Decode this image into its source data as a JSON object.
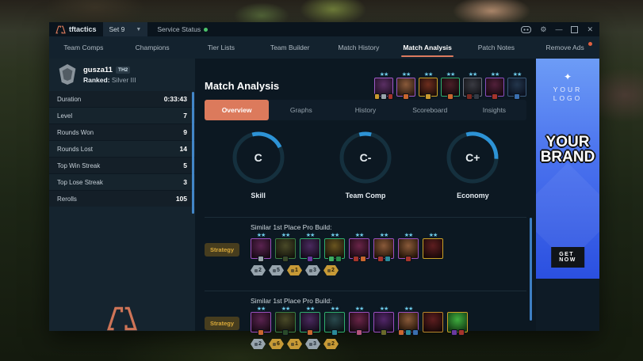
{
  "titlebar": {
    "brand": "tftactics",
    "set_selector": "Set 9",
    "service_status": "Service Status"
  },
  "nav": {
    "tabs": [
      {
        "label": "Team Comps",
        "active": false
      },
      {
        "label": "Champions",
        "active": false
      },
      {
        "label": "Tier Lists",
        "active": false
      },
      {
        "label": "Team Builder",
        "active": false
      },
      {
        "label": "Match History",
        "active": false
      },
      {
        "label": "Match Analysis",
        "active": true
      },
      {
        "label": "Patch Notes",
        "active": false
      },
      {
        "label": "Remove Ads",
        "active": false,
        "badge_dot": true
      }
    ]
  },
  "sidebar": {
    "player": {
      "name": "gusza11",
      "tag": "TH2",
      "ranked_label": "Ranked:",
      "rank": "Silver III"
    },
    "stats": [
      {
        "label": "Duration",
        "value": "0:33:43"
      },
      {
        "label": "Level",
        "value": "7"
      },
      {
        "label": "Rounds Won",
        "value": "9"
      },
      {
        "label": "Rounds Lost",
        "value": "14"
      },
      {
        "label": "Top Win Streak",
        "value": "5"
      },
      {
        "label": "Top Lose Streak",
        "value": "3"
      },
      {
        "label": "Rerolls",
        "value": "105"
      }
    ]
  },
  "main": {
    "title": "Match Analysis",
    "header_champions": [
      {
        "border": "#a05ac8",
        "bg1": "#5a2f63",
        "bg2": "#201024",
        "stars": 2,
        "items": [
          "#c9992f",
          "#9aa4ac",
          "#a5342c"
        ]
      },
      {
        "border": "#9b59c9",
        "bg1": "#8a5a3a",
        "bg2": "#2a1a12",
        "stars": 2,
        "items": [
          "#c9662f"
        ]
      },
      {
        "border": "#c9a227",
        "bg1": "#6e2e1e",
        "bg2": "#1c0d0a",
        "stars": 2,
        "items": [
          "#c9992f"
        ]
      },
      {
        "border": "#2fae6e",
        "bg1": "#4a1f28",
        "bg2": "#14090c",
        "stars": 2,
        "items": [
          "#c9662f"
        ]
      },
      {
        "border": "#6b7280",
        "bg1": "#3a3b42",
        "bg2": "#121318",
        "stars": 2,
        "items": [
          "#7a2a22",
          "#333a44"
        ]
      },
      {
        "border": "#8a4fc0",
        "bg1": "#52203a",
        "bg2": "#170a10",
        "stars": 2,
        "items": [
          "#a5342c"
        ]
      },
      {
        "border": "#3b5a7a",
        "bg1": "#23364c",
        "bg2": "#0b1220",
        "stars": 2,
        "items": [
          "#3a6fb0"
        ]
      }
    ],
    "tabs": [
      {
        "label": "Overview",
        "active": true
      },
      {
        "label": "Graphs",
        "active": false
      },
      {
        "label": "History",
        "active": false
      },
      {
        "label": "Scoreboard",
        "active": false
      },
      {
        "label": "Insights",
        "active": false
      }
    ],
    "gauges": [
      {
        "grade": "C",
        "label": "Skill",
        "percent": 22
      },
      {
        "grade": "C-",
        "label": "Team Comp",
        "percent": 8
      },
      {
        "grade": "C+",
        "label": "Economy",
        "percent": 30
      }
    ],
    "builds": [
      {
        "badge": "Strategy",
        "title": "Similar 1st Place Pro Build:",
        "champions": [
          {
            "border": "#9b4fc0",
            "bg1": "#5a2350",
            "bg2": "#190a16",
            "stars": 2,
            "items": [
              "#9aa4ac"
            ]
          },
          {
            "border": "#3a7d44",
            "bg1": "#4a4a28",
            "bg2": "#14140c",
            "stars": 2,
            "items": [
              "#3a4a2a"
            ]
          },
          {
            "border": "#2fae6e",
            "bg1": "#4a2a5e",
            "bg2": "#150b1c",
            "stars": 2,
            "items": [
              "#6a3aa0"
            ]
          },
          {
            "border": "#2fae6e",
            "bg1": "#6a5520",
            "bg2": "#1a140a",
            "stars": 2,
            "items": [
              "#3fae5f",
              "#2a8a4a"
            ]
          },
          {
            "border": "#9b4fc0",
            "bg1": "#6a2548",
            "bg2": "#1c0a14",
            "stars": 2,
            "items": [
              "#a5342c",
              "#c9662f"
            ]
          },
          {
            "border": "#9b4fc0",
            "bg1": "#8a5a3a",
            "bg2": "#241508",
            "stars": 2,
            "items": [
              "#a5342c",
              "#2a8a9a"
            ]
          },
          {
            "border": "#9b4fc0",
            "bg1": "#8a5a3a",
            "bg2": "#241508",
            "stars": 2,
            "items": [
              "#a5342c"
            ]
          },
          {
            "border": "#c9a227",
            "bg1": "#5e1e20",
            "bg2": "#180808",
            "stars": 2,
            "items": []
          }
        ],
        "traits": [
          {
            "tier": "silver",
            "count": "2"
          },
          {
            "tier": "silver",
            "count": "5"
          },
          {
            "tier": "gold",
            "count": "1"
          },
          {
            "tier": "silver",
            "count": "3"
          },
          {
            "tier": "gold",
            "count": "2"
          }
        ]
      },
      {
        "badge": "Strategy",
        "title": "Similar 1st Place Pro Build:",
        "champions": [
          {
            "border": "#9b4fc0",
            "bg1": "#5a2350",
            "bg2": "#190a16",
            "stars": 2,
            "items": [
              "#c9662f"
            ]
          },
          {
            "border": "#3a7d44",
            "bg1": "#4a4a28",
            "bg2": "#14140c",
            "stars": 2,
            "items": [
              "#2a4a2a"
            ]
          },
          {
            "border": "#2fae6e",
            "bg1": "#4a2a5e",
            "bg2": "#150b1c",
            "stars": 2,
            "items": [
              "#c9662f"
            ]
          },
          {
            "border": "#2fae6e",
            "bg1": "#2a4a4e",
            "bg2": "#0a1416",
            "stars": 2,
            "items": [
              "#2a8a9a"
            ]
          },
          {
            "border": "#9b4fc0",
            "bg1": "#6a2548",
            "bg2": "#1c0a14",
            "stars": 2,
            "items": [
              "#b5547c"
            ]
          },
          {
            "border": "#9b4fc0",
            "bg1": "#53276a",
            "bg2": "#150a1c",
            "stars": 2,
            "items": [
              "#6a6a2a"
            ]
          },
          {
            "border": "#9b4fc0",
            "bg1": "#8a5a3a",
            "bg2": "#241508",
            "stars": 2,
            "items": [
              "#c9662f",
              "#2a8a9a",
              "#3a6fb0"
            ]
          },
          {
            "border": "#b8862b",
            "bg1": "#5e1e20",
            "bg2": "#180808",
            "stars": 0,
            "items": []
          },
          {
            "border": "#c9a227",
            "bg1": "#3fae3f",
            "bg2": "#123a12",
            "stars": 0,
            "items": [
              "#6a3aa0",
              "#a5342c"
            ]
          }
        ],
        "traits": [
          {
            "tier": "silver",
            "count": "2"
          },
          {
            "tier": "gold",
            "count": "6"
          },
          {
            "tier": "gold",
            "count": "1"
          },
          {
            "tier": "silver",
            "count": "3"
          },
          {
            "tier": "gold",
            "count": "2"
          }
        ]
      }
    ]
  },
  "ad": {
    "logo_line1": "YOUR",
    "logo_line2": "LOGO",
    "brand_line1": "YOUR",
    "brand_line2": "BRAND",
    "cta": "GET NOW"
  },
  "colors": {
    "accent": "#dd7b5f",
    "gauge_arc": "#2d93d6",
    "gauge_track": "#15303e",
    "scrollbar": "#4286c8",
    "status_green": "#4cc36a"
  }
}
